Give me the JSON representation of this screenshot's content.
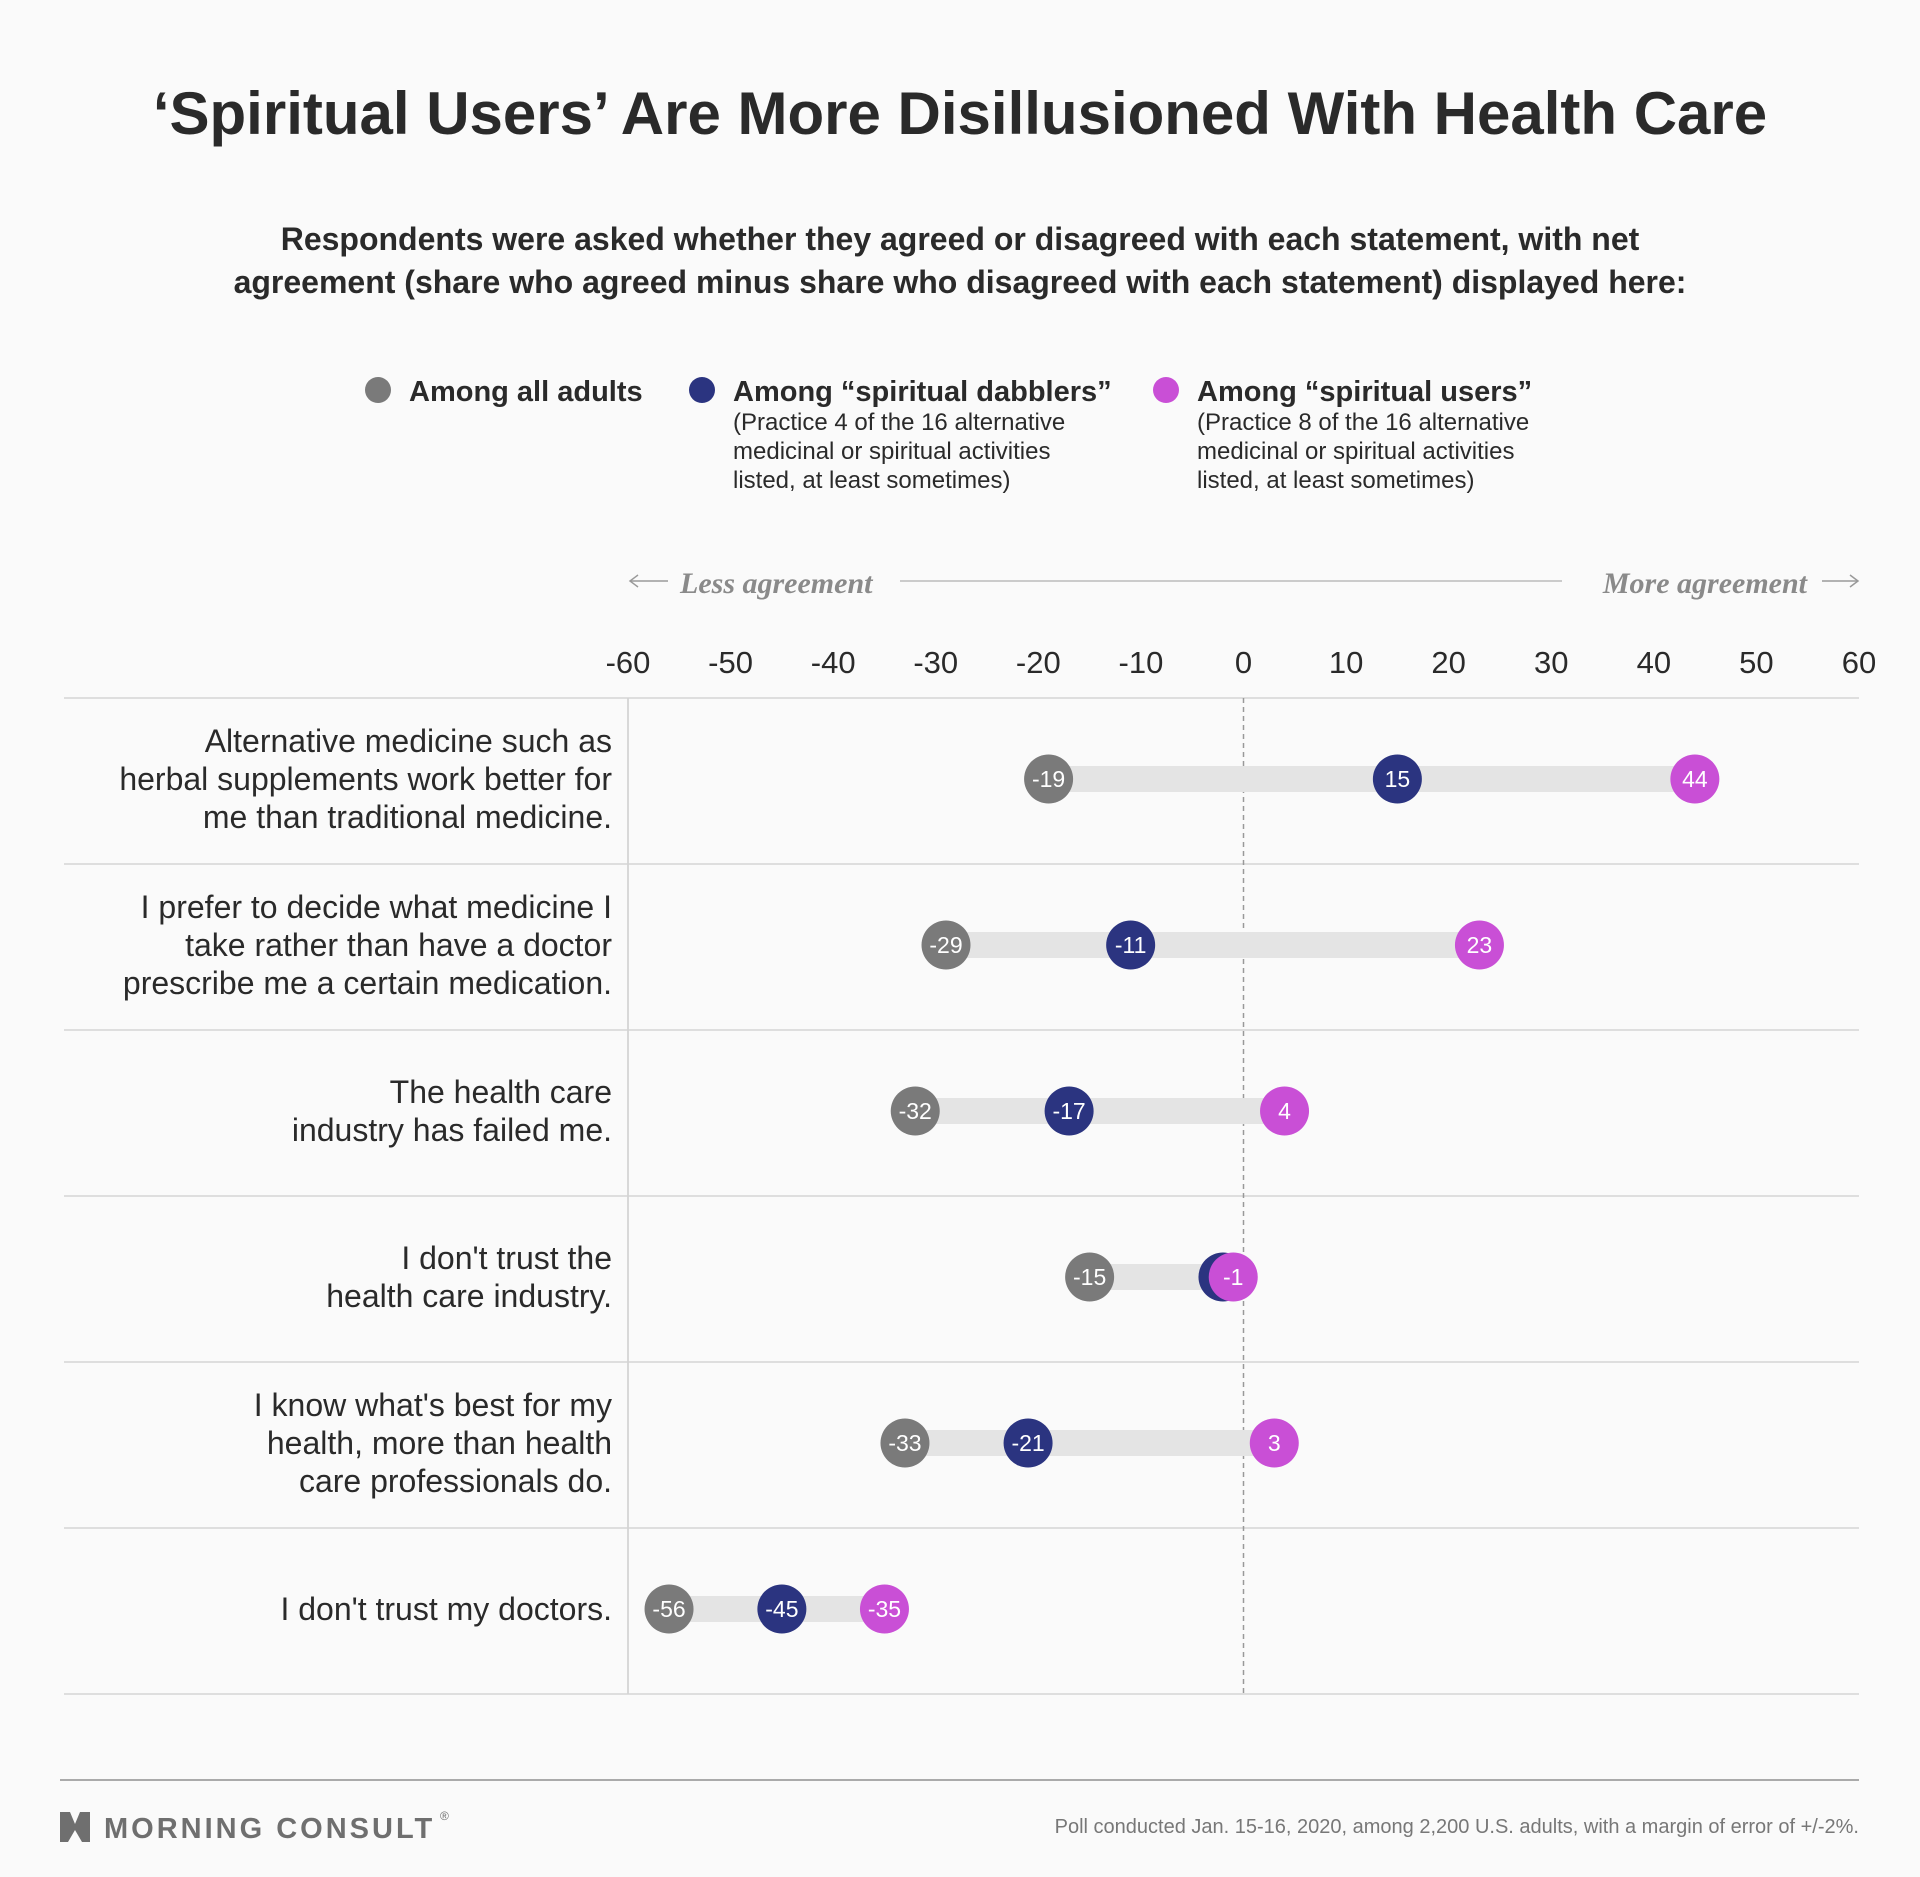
{
  "title": "‘Spiritual Users’ Are More Disillusioned With Health Care",
  "subtitle": [
    "Respondents were asked whether they agreed or disagreed with each statement, with net",
    "agreement (share who agreed minus share who disagreed with each statement) displayed here:"
  ],
  "legend": [
    {
      "label": "Among all adults",
      "note": [],
      "color": "#7a7a7a"
    },
    {
      "label": "Among “spiritual dabblers”",
      "note": [
        "(Practice 4 of the 16 alternative",
        "medicinal or spiritual activities",
        "listed, at least sometimes)"
      ],
      "color": "#2b3480"
    },
    {
      "label": "Among “spiritual users”",
      "note": [
        "(Practice 8 of the 16 alternative",
        "medicinal or spiritual activities",
        "listed, at least sometimes)"
      ],
      "color": "#c94fd6"
    }
  ],
  "direction": {
    "less": "Less agreement",
    "more": "More agreement"
  },
  "footer": {
    "brand": "MORNING CONSULT",
    "note": "Poll conducted Jan. 15-16, 2020, among 2,200 U.S. adults, with a margin of error of +/-2%."
  },
  "chart_data": {
    "type": "dot",
    "xlim": [
      -60,
      60
    ],
    "xticks": [
      -60,
      -50,
      -40,
      -30,
      -20,
      -10,
      0,
      10,
      20,
      30,
      40,
      50,
      60
    ],
    "categories": [
      [
        "Alternative medicine such as",
        "herbal supplements work better for",
        "me than traditional medicine."
      ],
      [
        "I prefer to decide what medicine I",
        "take rather than have a doctor",
        "prescribe me a certain medication."
      ],
      [
        "The health care",
        "industry has failed me."
      ],
      [
        "I don't trust the",
        "health care industry."
      ],
      [
        "I know what's best for my",
        "health, more than health",
        "care professionals do."
      ],
      [
        "I don't trust my doctors."
      ]
    ],
    "series": [
      {
        "name": "Among all adults",
        "color": "#7a7a7a",
        "values": [
          -19,
          -29,
          -32,
          -15,
          -33,
          -56
        ]
      },
      {
        "name": "Among “spiritual dabblers”",
        "color": "#2b3480",
        "values": [
          15,
          -11,
          -17,
          -2,
          -21,
          -45
        ]
      },
      {
        "name": "Among “spiritual users”",
        "color": "#c94fd6",
        "values": [
          44,
          23,
          4,
          -1,
          3,
          -35
        ]
      }
    ],
    "data_labels": [
      [
        "-19",
        "15",
        "44"
      ],
      [
        "-29",
        "-11",
        "23"
      ],
      [
        "-32",
        "-17",
        "4"
      ],
      [
        "-15",
        "",
        "-1"
      ],
      [
        "-33",
        "-21",
        "3"
      ],
      [
        "-56",
        "-45",
        "-35"
      ]
    ]
  }
}
